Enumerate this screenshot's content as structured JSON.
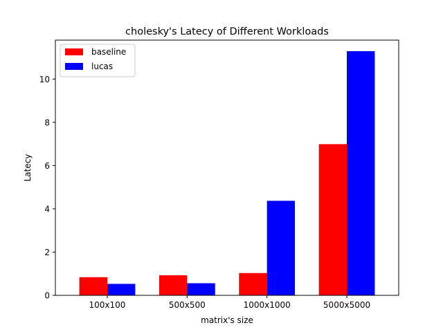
{
  "chart_data": {
    "type": "bar",
    "title": "cholesky's Latecy of Different Workloads",
    "xlabel": "matrix's size",
    "ylabel": "Latecy",
    "categories": [
      "100x100",
      "500x500",
      "1000x1000",
      "5000x5000"
    ],
    "series": [
      {
        "name": "baseline",
        "color": "#ff0000",
        "values": [
          0.84,
          0.93,
          1.03,
          6.99
        ]
      },
      {
        "name": "lucas",
        "color": "#0000ff",
        "values": [
          0.53,
          0.56,
          4.37,
          11.29
        ]
      }
    ],
    "ylim": [
      0,
      11.8
    ],
    "yticks": [
      "0",
      "2",
      "4",
      "6",
      "8",
      "10"
    ],
    "grid": false,
    "legend_position": "top-left"
  }
}
